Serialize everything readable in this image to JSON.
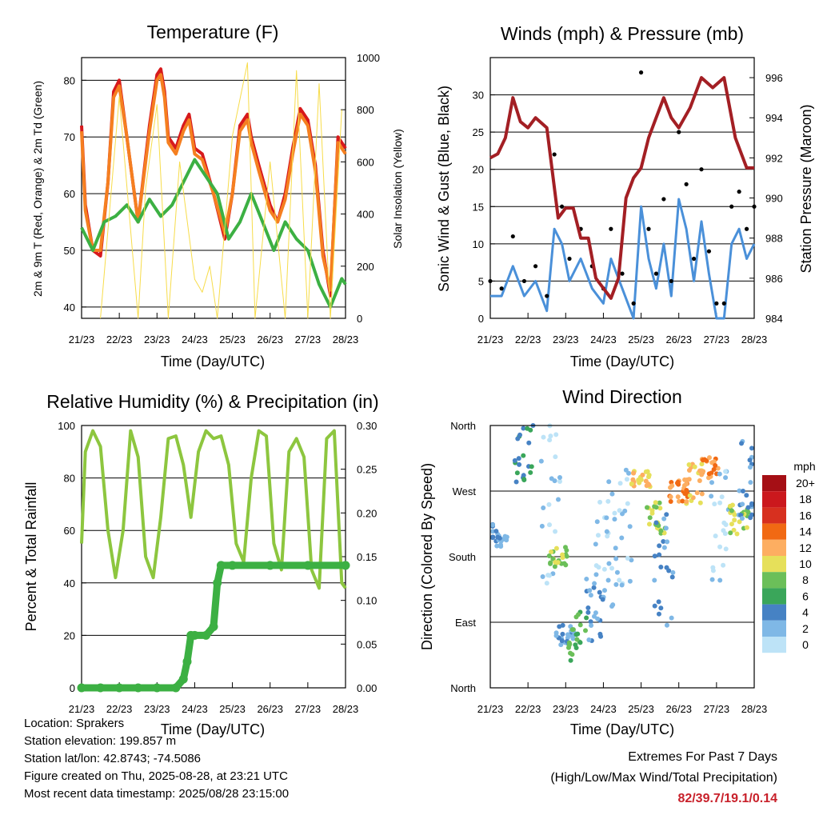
{
  "charts": {
    "temperature": {
      "title": "Temperature (F)",
      "ylabel_left": "2m & 9m T (Red, Orange) & 2m Td (Green)",
      "ylabel_right": "Solar Insolation (Yellow)",
      "xlabel": "Time (Day/UTC)"
    },
    "winds": {
      "title": "Winds (mph) & Pressure (mb)",
      "ylabel_left": "Sonic Wind & Gust (Blue, Black)",
      "ylabel_right": "Station Pressure (Maroon)",
      "xlabel": "Time (Day/UTC)"
    },
    "humidity": {
      "title": "Relative Humidity (%) & Precipitation (in)",
      "ylabel_left": "Percent & Total Rainfall",
      "xlabel": "Time (Day/UTC)"
    },
    "direction": {
      "title": "Wind Direction",
      "ylabel_left": "Direction (Colored By Speed)",
      "xlabel": "Time (Day/UTC)",
      "legend_title": "mph"
    }
  },
  "chart_data": [
    {
      "type": "line",
      "title": "Temperature (F)",
      "xlabel": "Time (Day/UTC)",
      "ylabel": "2m & 9m T (Red, Orange) & 2m Td (Green)",
      "ylabel_right": "Solar Insolation (Yellow)",
      "x_ticks": [
        "21/23",
        "22/23",
        "23/23",
        "24/23",
        "25/23",
        "26/23",
        "27/23",
        "28/23"
      ],
      "ylim": [
        38,
        84
      ],
      "y_ticks": [
        40,
        50,
        60,
        70,
        80
      ],
      "ylim_right": [
        0,
        1000
      ],
      "y_ticks_right": [
        0,
        200,
        400,
        600,
        800,
        1000
      ],
      "grid": true,
      "series": [
        {
          "name": "2m T",
          "color": "#d7191c",
          "x": [
            0,
            0.1,
            0.3,
            0.5,
            0.7,
            0.85,
            1.0,
            1.2,
            1.5,
            1.8,
            2.0,
            2.1,
            2.2,
            2.3,
            2.5,
            2.7,
            2.85,
            3.0,
            3.2,
            3.5,
            3.8,
            4.0,
            4.2,
            4.4,
            4.5,
            4.7,
            5.0,
            5.2,
            5.4,
            5.6,
            5.8,
            6.0,
            6.2,
            6.4,
            6.6,
            6.8,
            7.0
          ],
          "values": [
            72,
            58,
            50,
            49,
            62,
            78,
            80,
            70,
            55,
            72,
            81,
            82,
            78,
            70,
            68,
            72,
            74,
            68,
            67,
            60,
            52,
            60,
            72,
            74,
            70,
            65,
            58,
            55,
            60,
            68,
            75,
            73,
            65,
            50,
            42,
            70,
            68
          ]
        },
        {
          "name": "9m T",
          "color": "#f57f20",
          "x": [
            0,
            0.1,
            0.3,
            0.5,
            0.7,
            0.85,
            1.0,
            1.2,
            1.5,
            1.8,
            2.0,
            2.1,
            2.2,
            2.3,
            2.5,
            2.7,
            2.85,
            3.0,
            3.2,
            3.5,
            3.8,
            4.0,
            4.2,
            4.4,
            4.5,
            4.7,
            5.0,
            5.2,
            5.4,
            5.6,
            5.8,
            6.0,
            6.2,
            6.4,
            6.6,
            6.8,
            7.0
          ],
          "values": [
            71,
            57,
            50,
            50,
            62,
            77,
            79,
            70,
            55,
            71,
            80,
            81,
            77,
            69,
            67,
            71,
            73,
            67,
            66,
            60,
            53,
            60,
            71,
            73,
            69,
            64,
            57,
            55,
            59,
            67,
            74,
            72,
            64,
            49,
            43,
            69,
            67
          ]
        },
        {
          "name": "2m Td",
          "color": "#3cb043",
          "x": [
            0,
            0.3,
            0.6,
            0.9,
            1.2,
            1.5,
            1.8,
            2.1,
            2.4,
            2.7,
            3.0,
            3.3,
            3.6,
            3.9,
            4.2,
            4.5,
            4.8,
            5.1,
            5.4,
            5.7,
            6.0,
            6.3,
            6.6,
            6.9,
            7.0
          ],
          "values": [
            54,
            50,
            55,
            56,
            58,
            55,
            59,
            56,
            58,
            62,
            66,
            63,
            60,
            52,
            55,
            60,
            55,
            50,
            55,
            52,
            50,
            44,
            40,
            45,
            44
          ]
        },
        {
          "name": "Solar Insolation",
          "color": "#f7dc4a",
          "axis": "right",
          "x": [
            0.5,
            1.0,
            1.5,
            1.7,
            2.0,
            2.3,
            2.6,
            3.0,
            3.2,
            3.4,
            3.6,
            4.0,
            4.4,
            4.6,
            5.0,
            5.4,
            5.7,
            6.0,
            6.3,
            6.6,
            6.9
          ],
          "values": [
            0,
            850,
            0,
            500,
            820,
            0,
            600,
            150,
            100,
            200,
            0,
            700,
            980,
            0,
            600,
            0,
            950,
            0,
            900,
            0,
            800
          ]
        }
      ]
    },
    {
      "type": "line",
      "title": "Winds (mph) & Pressure (mb)",
      "xlabel": "Time (Day/UTC)",
      "ylabel": "Sonic Wind & Gust (Blue, Black)",
      "ylabel_right": "Station Pressure (Maroon)",
      "x_ticks": [
        "21/23",
        "22/23",
        "23/23",
        "24/23",
        "25/23",
        "26/23",
        "27/23",
        "28/23"
      ],
      "ylim": [
        0,
        35
      ],
      "y_ticks": [
        0,
        5,
        10,
        15,
        20,
        25,
        30
      ],
      "ylim_right": [
        984,
        997
      ],
      "y_ticks_right": [
        984,
        986,
        988,
        990,
        992,
        994,
        996
      ],
      "grid": true,
      "series": [
        {
          "name": "Station Pressure",
          "color": "#a31f24",
          "axis": "right",
          "x": [
            0,
            0.2,
            0.4,
            0.6,
            0.8,
            1.0,
            1.2,
            1.5,
            1.8,
            2.0,
            2.2,
            2.4,
            2.6,
            2.8,
            3.0,
            3.2,
            3.4,
            3.6,
            3.8,
            4.0,
            4.2,
            4.4,
            4.6,
            4.8,
            5.0,
            5.3,
            5.6,
            5.9,
            6.2,
            6.5,
            6.8,
            7.0
          ],
          "values": [
            992,
            992.2,
            993,
            995,
            993.8,
            993.5,
            994,
            993.5,
            989,
            989.5,
            989.5,
            988,
            988,
            986,
            985.5,
            985,
            986,
            990,
            991,
            991.5,
            993,
            994,
            995,
            994,
            993.5,
            994.5,
            996,
            995.5,
            996,
            993,
            991.5,
            991.5
          ]
        },
        {
          "name": "Sonic Wind",
          "color": "#4a90d9",
          "x": [
            0,
            0.3,
            0.6,
            0.9,
            1.2,
            1.5,
            1.7,
            1.9,
            2.1,
            2.4,
            2.7,
            3.0,
            3.2,
            3.5,
            3.8,
            4.0,
            4.2,
            4.4,
            4.6,
            4.8,
            5.0,
            5.2,
            5.4,
            5.6,
            5.8,
            6.0,
            6.2,
            6.4,
            6.6,
            6.8,
            7.0
          ],
          "values": [
            3,
            3,
            7,
            3,
            5,
            1,
            12,
            10,
            5,
            8,
            4,
            2,
            8,
            4,
            0,
            15,
            8,
            4,
            10,
            3,
            16,
            12,
            5,
            13,
            6,
            0,
            0,
            10,
            12,
            8,
            10
          ]
        },
        {
          "name": "Gust",
          "color": "#000000",
          "x": [
            0,
            0.3,
            0.6,
            0.9,
            1.2,
            1.5,
            1.7,
            1.9,
            2.1,
            2.4,
            2.7,
            3.0,
            3.2,
            3.5,
            3.8,
            4.0,
            4.2,
            4.4,
            4.6,
            4.8,
            5.0,
            5.2,
            5.4,
            5.6,
            5.8,
            6.0,
            6.2,
            6.4,
            6.6,
            6.8,
            7.0
          ],
          "values": [
            5,
            4,
            11,
            5,
            7,
            3,
            22,
            15,
            8,
            12,
            7,
            4,
            12,
            6,
            2,
            33,
            12,
            6,
            16,
            5,
            25,
            18,
            8,
            20,
            9,
            2,
            2,
            15,
            17,
            12,
            15
          ]
        }
      ]
    },
    {
      "type": "line",
      "title": "Relative Humidity (%) & Precipitation (in)",
      "xlabel": "Time (Day/UTC)",
      "ylabel": "Percent & Total Rainfall",
      "x_ticks": [
        "21/23",
        "22/23",
        "23/23",
        "24/23",
        "25/23",
        "26/23",
        "27/23",
        "28/23"
      ],
      "ylim": [
        0,
        100
      ],
      "y_ticks": [
        0,
        20,
        40,
        60,
        80,
        100
      ],
      "ylim_right": [
        0,
        0.3
      ],
      "y_ticks_right": [
        "0.00",
        "0.05",
        "0.10",
        "0.15",
        "0.20",
        "0.25",
        "0.30"
      ],
      "grid": true,
      "series": [
        {
          "name": "Relative Humidity",
          "color": "#8dc63f",
          "x": [
            0,
            0.1,
            0.3,
            0.5,
            0.7,
            0.9,
            1.1,
            1.3,
            1.5,
            1.7,
            1.9,
            2.1,
            2.3,
            2.5,
            2.7,
            2.9,
            3.1,
            3.3,
            3.5,
            3.7,
            3.9,
            4.1,
            4.3,
            4.5,
            4.7,
            4.9,
            5.1,
            5.3,
            5.5,
            5.7,
            5.9,
            6.1,
            6.3,
            6.5,
            6.7,
            6.9,
            7.0
          ],
          "values": [
            55,
            90,
            98,
            92,
            60,
            42,
            60,
            98,
            88,
            50,
            42,
            65,
            95,
            96,
            85,
            65,
            90,
            98,
            95,
            96,
            85,
            55,
            48,
            80,
            98,
            96,
            55,
            45,
            90,
            95,
            88,
            45,
            38,
            95,
            98,
            40,
            38
          ]
        },
        {
          "name": "Total Rainfall",
          "color": "#3cb043",
          "axis": "right",
          "x": [
            0,
            0.5,
            1.0,
            1.5,
            2.0,
            2.5,
            2.7,
            2.8,
            2.9,
            3.0,
            3.3,
            3.5,
            3.6,
            3.7,
            4.0,
            5.0,
            6.0,
            7.0
          ],
          "values": [
            0,
            0,
            0,
            0,
            0,
            0,
            0.01,
            0.03,
            0.06,
            0.06,
            0.06,
            0.07,
            0.12,
            0.14,
            0.14,
            0.14,
            0.14,
            0.14
          ]
        }
      ]
    },
    {
      "type": "scatter",
      "title": "Wind Direction",
      "xlabel": "Time (Day/UTC)",
      "ylabel": "Direction (Colored By Speed)",
      "x_ticks": [
        "21/23",
        "22/23",
        "23/23",
        "24/23",
        "25/23",
        "26/23",
        "27/23",
        "28/23"
      ],
      "y_ticks": [
        "North",
        "East",
        "South",
        "West",
        "North"
      ],
      "grid": true,
      "legend_title": "mph",
      "legend": [
        "20+",
        "18",
        "16",
        "14",
        "12",
        "10",
        "8",
        "6",
        "4",
        "2",
        "0"
      ],
      "legend_colors": [
        "#a50f15",
        "#cb181d",
        "#d7301f",
        "#f16913",
        "#fdae61",
        "#e6e05a",
        "#6bbf59",
        "#3aa65a",
        "#4682c4",
        "#7fb8e6",
        "#bde3f7"
      ],
      "legend_placement": "right"
    }
  ],
  "info": {
    "location": "Location: Sprakers",
    "elevation": "Station elevation: 199.857 m",
    "latlon": "Station lat/lon: 42.8743; -74.5086",
    "created": "Figure created on Thu, 2025-08-28, at 23:21 UTC",
    "timestamp": "Most recent data timestamp: 2025/08/28 23:15:00"
  },
  "extremes": {
    "title": "Extremes For Past 7 Days",
    "subtitle": "(High/Low/Max Wind/Total Precipitation)",
    "values": "82/39.7/19.1/0.14"
  }
}
